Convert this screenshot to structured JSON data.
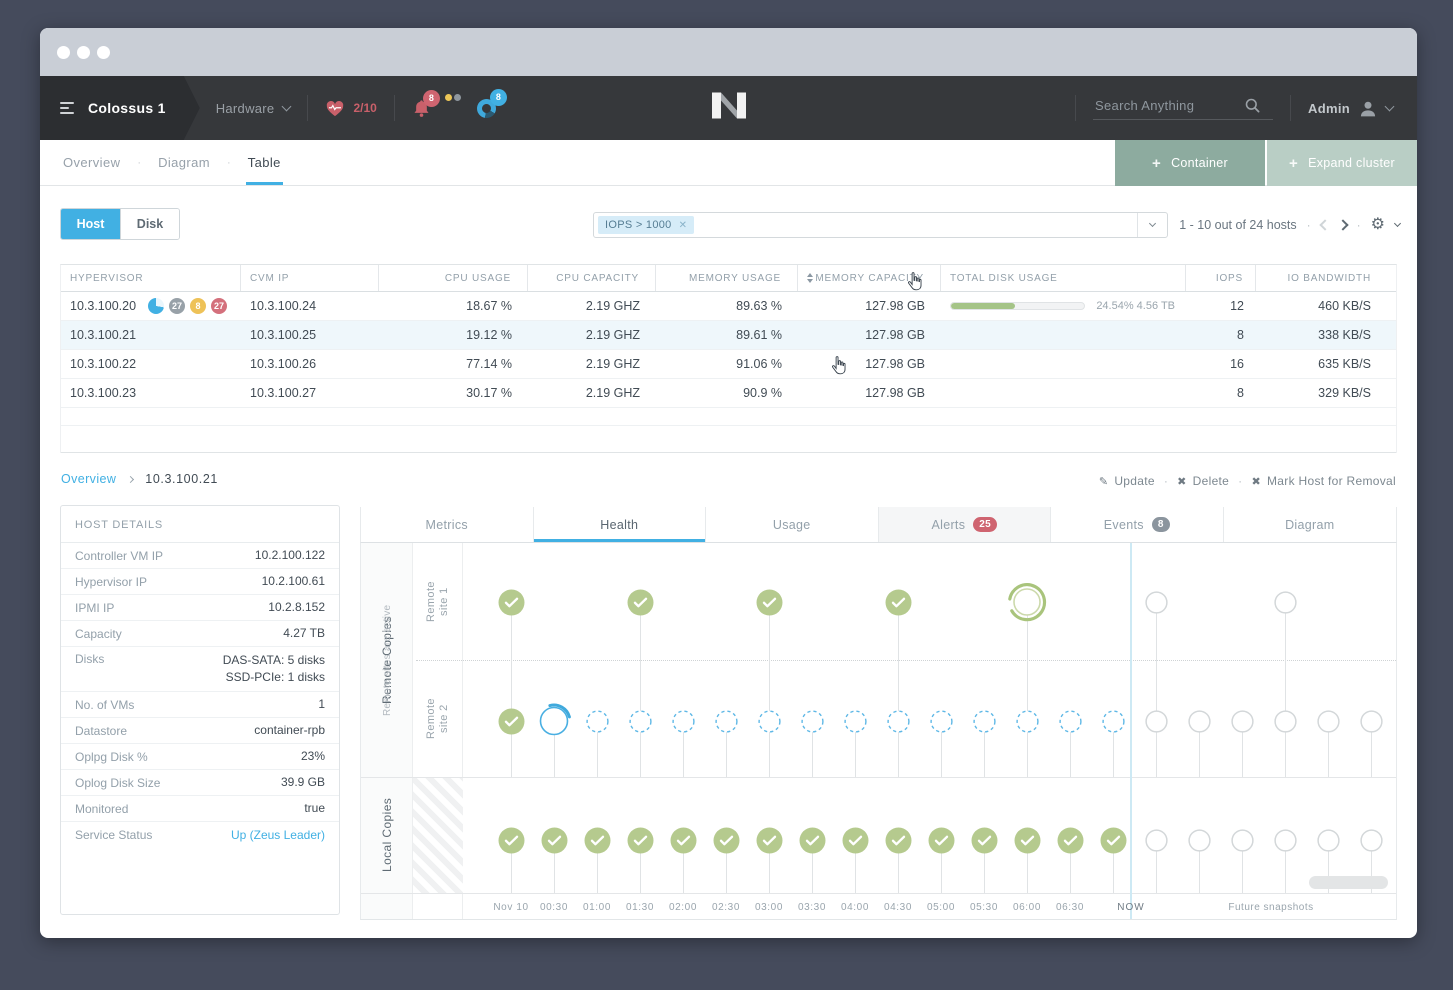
{
  "colors": {
    "accent": "#41b0e3",
    "success_green": "#b5ca8e",
    "danger_red": "#cf6470",
    "container_button": "#8dab9f",
    "expand_button": "#b9cec5",
    "navbar_bg": "#36383b"
  },
  "navbar": {
    "cluster": "Colossus 1",
    "menu": "Hardware",
    "health_score": "2/10",
    "alerts_count": "8",
    "tasks_count": "8",
    "search_placeholder": "Search Anything",
    "user": "Admin"
  },
  "view_tabs": [
    {
      "label": "Overview",
      "active": false
    },
    {
      "label": "Diagram",
      "active": false
    },
    {
      "label": "Table",
      "active": true
    }
  ],
  "header_buttons": {
    "container": "Container",
    "expand": "Expand cluster"
  },
  "toolbar": {
    "toggle": [
      {
        "label": "Host",
        "active": true
      },
      {
        "label": "Disk",
        "active": false
      }
    ],
    "filter_chip": "IOPS > 1000",
    "pagination": "1 - 10 out of 24 hosts"
  },
  "table": {
    "headers": [
      "HYPERVISOR",
      "CVM IP",
      "CPU USAGE",
      "CPU CAPACITY",
      "MEMORY USAGE",
      "MEMORY CAPACITY",
      "TOTAL DISK USAGE",
      "IOPS",
      "IO BANDWIDTH"
    ],
    "rows": [
      {
        "hypervisor": "10.3.100.20",
        "badges": [
          {
            "type": "pie"
          },
          {
            "type": "count",
            "text": "27",
            "color": "#98a1a8"
          },
          {
            "type": "count",
            "text": "8",
            "color": "#eec258"
          },
          {
            "type": "count",
            "text": "27",
            "color": "#d4707c"
          }
        ],
        "cvm_ip": "10.3.100.24",
        "cpu_usage": "18.67 %",
        "cpu_capacity": "2.19 GHZ",
        "memory_usage": "89.63 %",
        "memory_capacity": "127.98 GB",
        "disk": {
          "percent": 48,
          "label": "24.54% 4.56 TB"
        },
        "iops": "12",
        "io_bandwidth": "460 KB/S",
        "selected": false
      },
      {
        "hypervisor": "10.3.100.21",
        "cvm_ip": "10.3.100.25",
        "cpu_usage": "19.12 %",
        "cpu_capacity": "2.19 GHZ",
        "memory_usage": "89.61 %",
        "memory_capacity": "127.98 GB",
        "iops": "8",
        "io_bandwidth": "338 KB/S",
        "selected": true
      },
      {
        "hypervisor": "10.3.100.22",
        "cvm_ip": "10.3.100.26",
        "cpu_usage": "77.14 %",
        "cpu_capacity": "2.19 GHZ",
        "memory_usage": "91.06 %",
        "memory_capacity": "127.98 GB",
        "iops": "16",
        "io_bandwidth": "635 KB/S",
        "selected": false
      },
      {
        "hypervisor": "10.3.100.23",
        "cvm_ip": "10.3.100.27",
        "cpu_usage": "30.17 %",
        "cpu_capacity": "2.19 GHZ",
        "memory_usage": "90.9 %",
        "memory_capacity": "127.98 GB",
        "iops": "8",
        "io_bandwidth": "329 KB/S",
        "selected": false
      }
    ]
  },
  "breadcrumb": {
    "parent": "Overview",
    "current": "10.3.100.21"
  },
  "record_actions": [
    {
      "icon": "pencil",
      "label": "Update"
    },
    {
      "icon": "x",
      "label": "Delete"
    },
    {
      "icon": "x",
      "label": "Mark Host for Removal"
    }
  ],
  "host_details": {
    "title": "HOST DETAILS",
    "rows": [
      {
        "label": "Controller VM IP",
        "value": "10.2.100.122"
      },
      {
        "label": "Hypervisor IP",
        "value": "10.2.100.61"
      },
      {
        "label": "IPMI IP",
        "value": "10.2.8.152"
      },
      {
        "label": "Capacity",
        "value": "4.27 TB"
      },
      {
        "label": "Disks",
        "value": [
          "DAS-SATA: 5 disks",
          "SSD-PCIe: 1 disks"
        ]
      },
      {
        "label": "No. of VMs",
        "value": "1"
      },
      {
        "label": "Datastore",
        "value": "container-rpb"
      },
      {
        "label": "Oplpg Disk %",
        "value": "23%"
      },
      {
        "label": "Oplog Disk Size",
        "value": "39.9 GB"
      },
      {
        "label": "Monitored",
        "value": "true"
      },
      {
        "label": "Service Status",
        "value": "Up (Zeus Leader)",
        "link": true
      }
    ]
  },
  "detail_tabs": [
    {
      "label": "Metrics"
    },
    {
      "label": "Health",
      "active": true
    },
    {
      "label": "Usage"
    },
    {
      "label": "Alerts",
      "badge": "25",
      "badge_color": "#cf6470",
      "shaded": true
    },
    {
      "label": "Events",
      "badge": "8",
      "badge_color": "#8b959e"
    },
    {
      "label": "Diagram"
    }
  ],
  "chart_data": {
    "type": "timeline",
    "groups": {
      "remote_label": "Remote Copies",
      "remote_sublabel": "Remote sites are active",
      "rows": [
        "Remote site 1",
        "Remote site 2",
        "Local Copies"
      ]
    },
    "now_label": "NOW",
    "future_label": "Future snapshots",
    "legend_states": [
      "done",
      "in_progress",
      "in_progress_major",
      "pending",
      "future"
    ],
    "slots": [
      {
        "time": "Nov 10",
        "remote1": "done",
        "remote2": "done",
        "local": "done"
      },
      {
        "time": "00:30",
        "remote1": "none",
        "remote2": "in_progress",
        "local": "done"
      },
      {
        "time": "01:00",
        "remote1": "none",
        "remote2": "pending",
        "local": "done"
      },
      {
        "time": "01:30",
        "remote1": "done",
        "remote2": "pending",
        "local": "done"
      },
      {
        "time": "02:00",
        "remote1": "none",
        "remote2": "pending",
        "local": "done"
      },
      {
        "time": "02:30",
        "remote1": "none",
        "remote2": "pending",
        "local": "done"
      },
      {
        "time": "03:00",
        "remote1": "done",
        "remote2": "pending",
        "local": "done"
      },
      {
        "time": "03:30",
        "remote1": "none",
        "remote2": "pending",
        "local": "done"
      },
      {
        "time": "04:00",
        "remote1": "none",
        "remote2": "pending",
        "local": "done"
      },
      {
        "time": "04:30",
        "remote1": "done",
        "remote2": "pending",
        "local": "done"
      },
      {
        "time": "05:00",
        "remote1": "none",
        "remote2": "pending",
        "local": "done"
      },
      {
        "time": "05:30",
        "remote1": "none",
        "remote2": "pending",
        "local": "done"
      },
      {
        "time": "06:00",
        "remote1": "in_progress_major",
        "remote2": "pending",
        "local": "done"
      },
      {
        "time": "06:30",
        "remote1": "none",
        "remote2": "pending",
        "local": "done"
      },
      {
        "time": "",
        "remote1": "none",
        "remote2": "pending",
        "local": "done"
      },
      {
        "time": "",
        "remote1": "future",
        "remote2": "future",
        "local": "future"
      },
      {
        "time": "",
        "remote1": "none",
        "remote2": "future",
        "local": "future"
      },
      {
        "time": "",
        "remote1": "none",
        "remote2": "future",
        "local": "future"
      },
      {
        "time": "",
        "remote1": "future",
        "remote2": "future",
        "local": "future"
      },
      {
        "time": "",
        "remote1": "none",
        "remote2": "future",
        "local": "future"
      },
      {
        "time": "",
        "remote1": "none",
        "remote2": "future",
        "local": "future"
      }
    ]
  }
}
